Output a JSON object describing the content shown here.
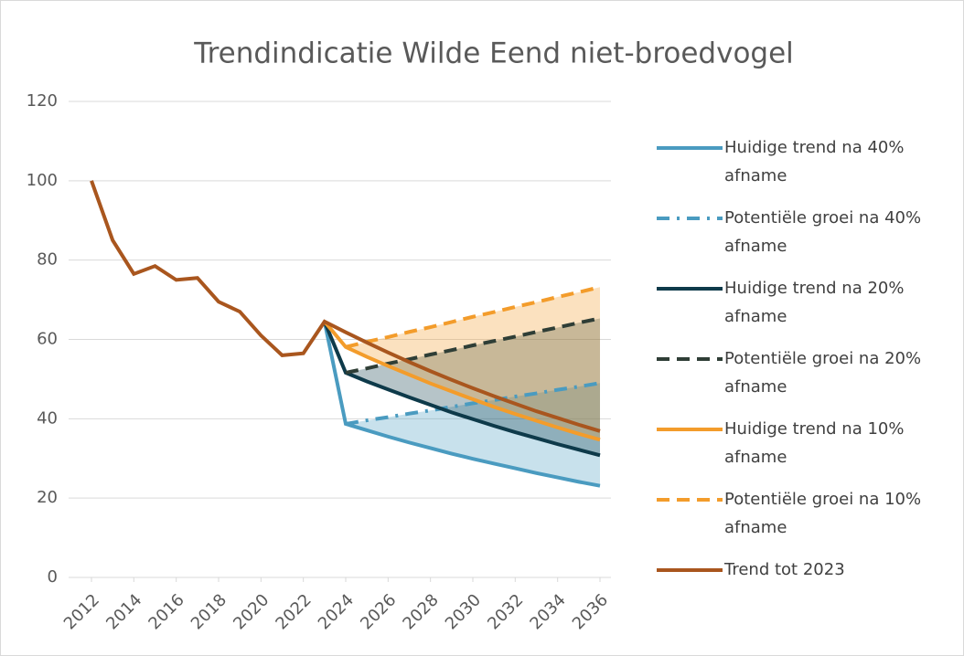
{
  "chart_data": {
    "type": "line",
    "title": "Trendindicatie Wilde Eend niet-broedvogel",
    "x": [
      2012,
      2013,
      2014,
      2015,
      2016,
      2017,
      2018,
      2019,
      2020,
      2021,
      2022,
      2023,
      2024,
      2025,
      2026,
      2027,
      2028,
      2029,
      2030,
      2031,
      2032,
      2033,
      2034,
      2035,
      2036
    ],
    "xlim": [
      2012,
      2036
    ],
    "xticks": [
      2012,
      2014,
      2016,
      2018,
      2020,
      2022,
      2024,
      2026,
      2028,
      2030,
      2032,
      2034,
      2036
    ],
    "ylim": [
      0,
      120
    ],
    "yticks": [
      0,
      20,
      40,
      60,
      80,
      100,
      120
    ],
    "grid": true,
    "legend": "right",
    "series": [
      {
        "name": "Huidige trend na 40% afname",
        "color": "#4a9bc0",
        "line_style": "solid",
        "values": [
          null,
          null,
          null,
          null,
          null,
          null,
          null,
          null,
          null,
          null,
          null,
          64.5,
          38.7,
          37.1,
          35.5,
          34.0,
          32.6,
          31.2,
          29.9,
          28.7,
          27.5,
          26.3,
          25.2,
          24.1,
          23.1
        ]
      },
      {
        "name": "Potentiële groei na 40% afname",
        "color": "#4a9bc0",
        "line_style": "dash-dot",
        "values": [
          null,
          null,
          null,
          null,
          null,
          null,
          null,
          null,
          null,
          null,
          null,
          null,
          38.7,
          39.6,
          40.4,
          41.3,
          42.1,
          43.0,
          43.9,
          44.7,
          45.6,
          46.4,
          47.3,
          48.1,
          49.0
        ]
      },
      {
        "name": "Huidige trend na 20% afname",
        "color": "#0e3a4a",
        "line_style": "solid",
        "values": [
          null,
          null,
          null,
          null,
          null,
          null,
          null,
          null,
          null,
          null,
          null,
          64.5,
          51.6,
          49.4,
          47.4,
          45.4,
          43.5,
          41.6,
          39.9,
          38.2,
          36.6,
          35.1,
          33.6,
          32.2,
          30.8
        ]
      },
      {
        "name": "Potentiële groei na 20% afname",
        "color": "#2f3e36",
        "line_style": "dashed",
        "values": [
          null,
          null,
          null,
          null,
          null,
          null,
          null,
          null,
          null,
          null,
          null,
          null,
          51.6,
          52.7,
          53.9,
          55.0,
          56.2,
          57.3,
          58.5,
          59.6,
          60.7,
          61.9,
          63.0,
          64.2,
          65.3
        ]
      },
      {
        "name": "Huidige trend na 10% afname",
        "color": "#f39c2b",
        "line_style": "solid",
        "values": [
          null,
          null,
          null,
          null,
          null,
          null,
          null,
          null,
          null,
          null,
          null,
          64.5,
          58.1,
          55.6,
          53.3,
          51.1,
          48.9,
          46.9,
          44.9,
          43.0,
          41.2,
          39.5,
          37.8,
          36.2,
          34.7
        ]
      },
      {
        "name": "Potentiële groei na 10% afname",
        "color": "#f39c2b",
        "line_style": "dashed",
        "values": [
          null,
          null,
          null,
          null,
          null,
          null,
          null,
          null,
          null,
          null,
          null,
          null,
          58.1,
          59.4,
          60.6,
          61.9,
          63.1,
          64.4,
          65.7,
          66.9,
          68.2,
          69.4,
          70.7,
          71.9,
          73.2
        ]
      },
      {
        "name": "Trend tot 2023",
        "color": "#a9561e",
        "line_style": "solid",
        "values": [
          100,
          85,
          76.5,
          78.5,
          75,
          75.5,
          69.5,
          67,
          61,
          56,
          56.5,
          64.5,
          61.8,
          59.2,
          56.7,
          54.3,
          52.0,
          49.8,
          47.7,
          45.7,
          43.8,
          41.9,
          40.2,
          38.5,
          36.9
        ]
      }
    ]
  }
}
